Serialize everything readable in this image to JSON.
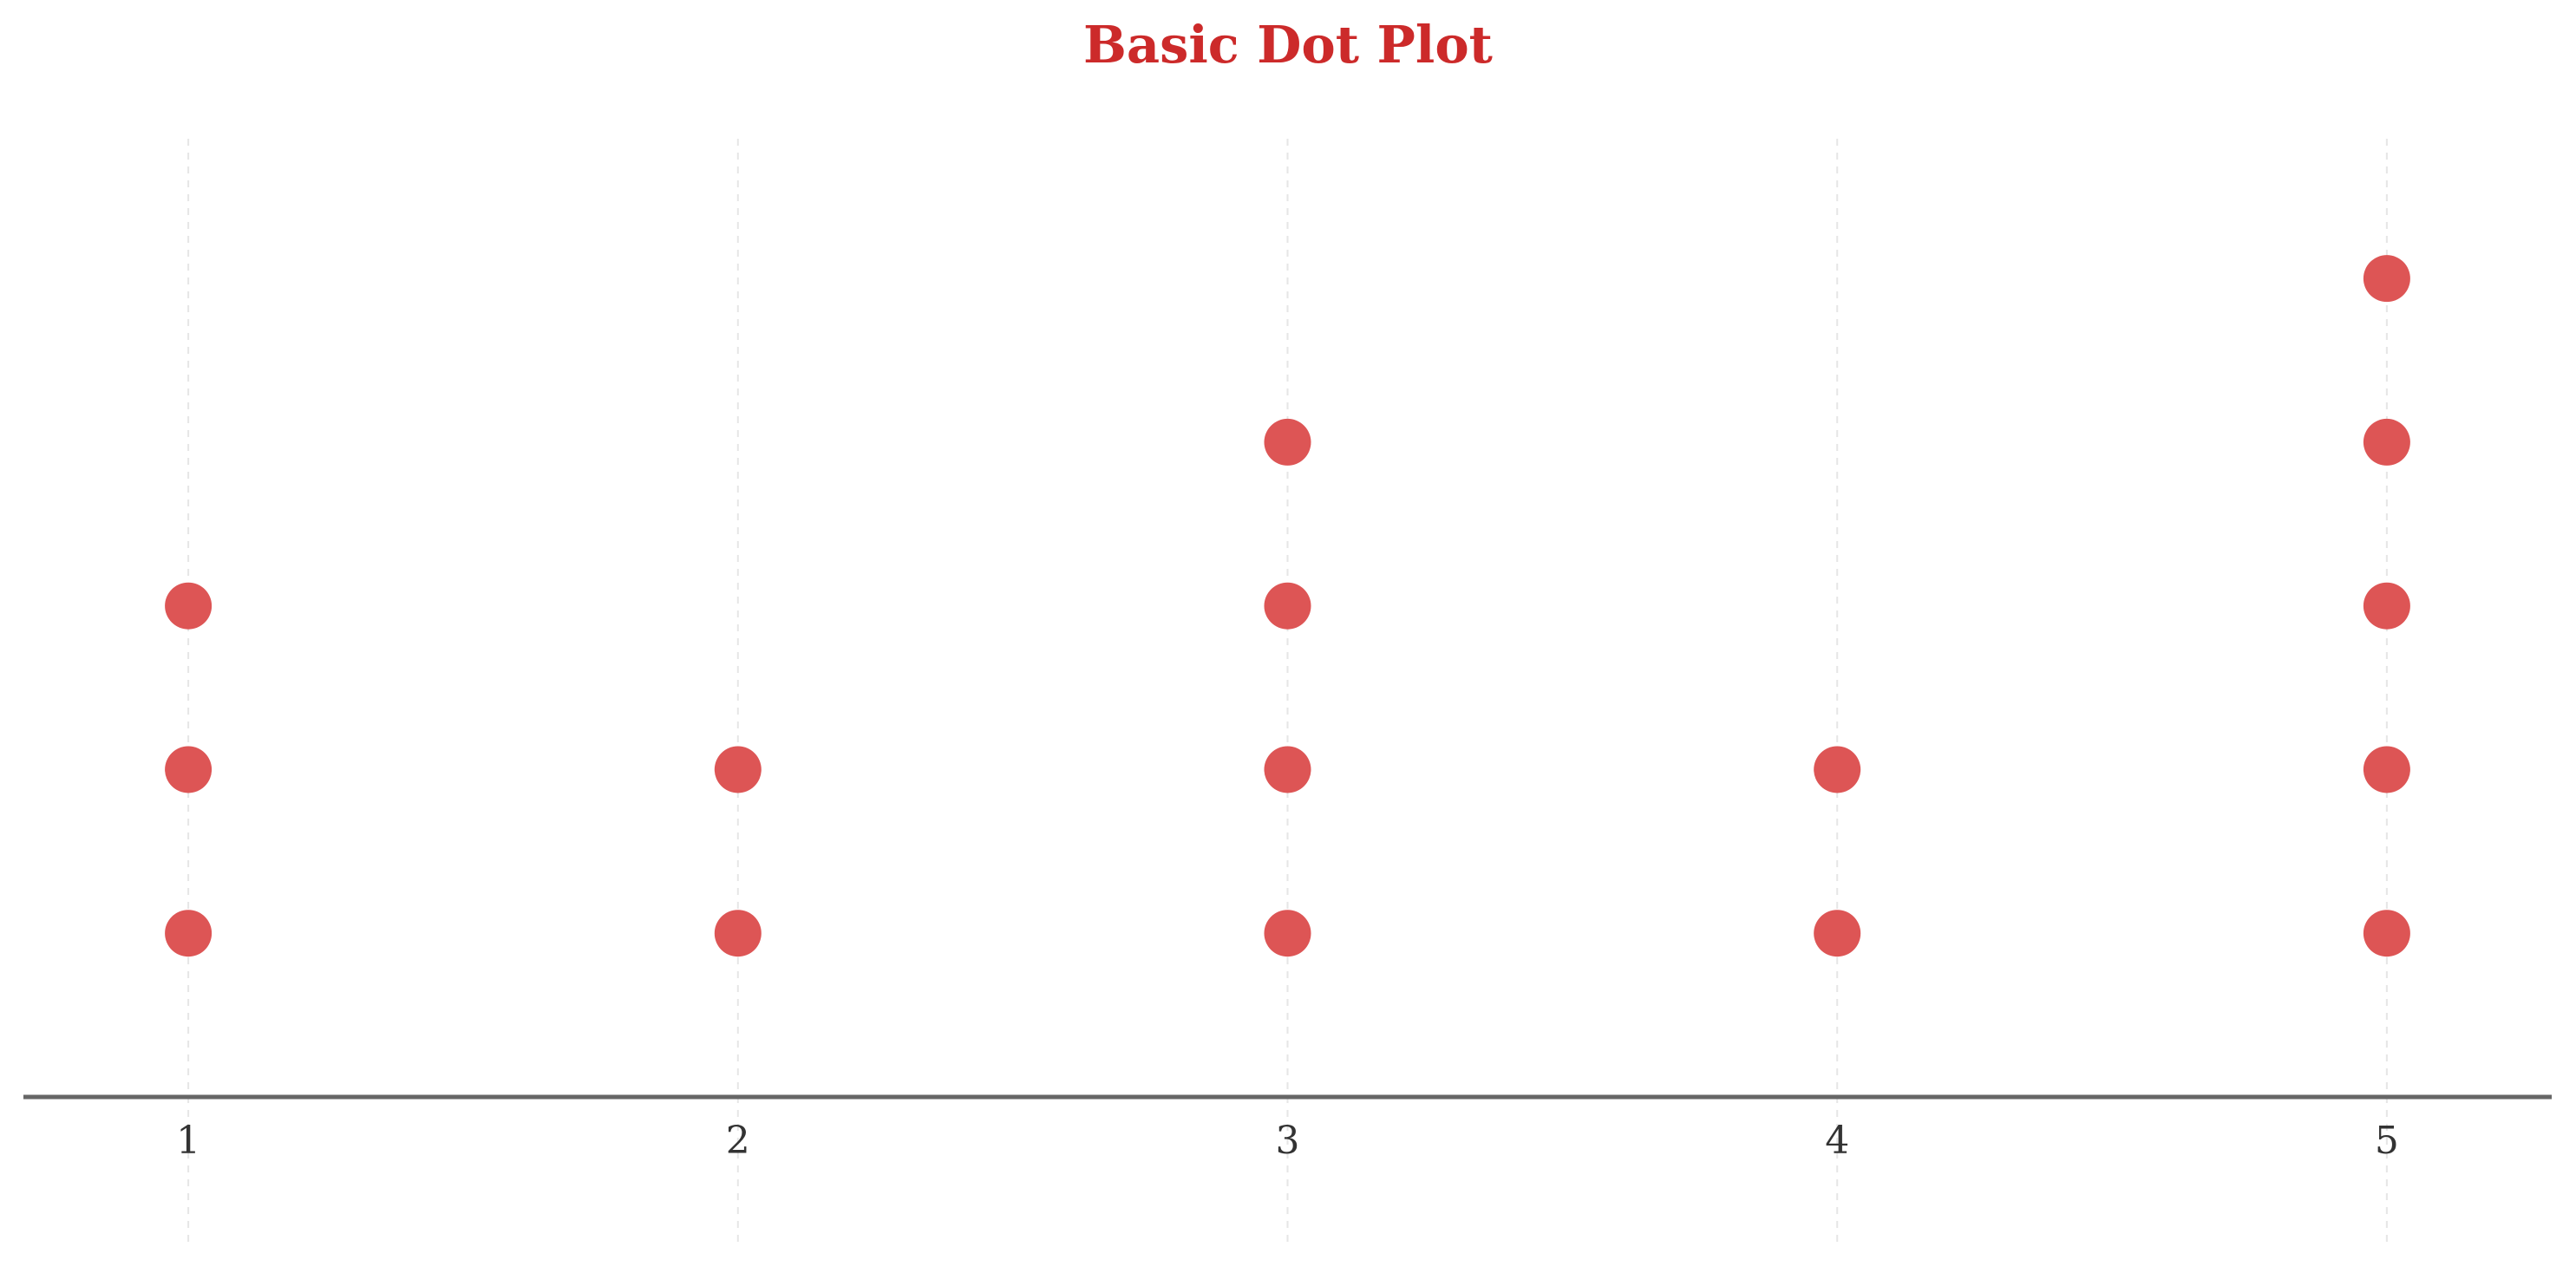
{
  "chart_data": {
    "type": "scatter",
    "subtype": "dot-plot",
    "title": "Basic Dot Plot",
    "xlabel": "",
    "ylabel": "",
    "categories": [
      1,
      2,
      3,
      4,
      5
    ],
    "counts": [
      3,
      2,
      4,
      2,
      5
    ],
    "x_ticks": [
      "1",
      "2",
      "3",
      "4",
      "5"
    ],
    "xlim": [
      0.7,
      5.3
    ],
    "ylim": [
      0,
      6.5
    ],
    "grid": "vertical-dashed",
    "legend": "none",
    "colors": {
      "title": "#cc2a2a",
      "dot": "#dd5555",
      "axis": "#666666",
      "grid": "#e6e6e6",
      "tick_label": "#333333"
    }
  }
}
